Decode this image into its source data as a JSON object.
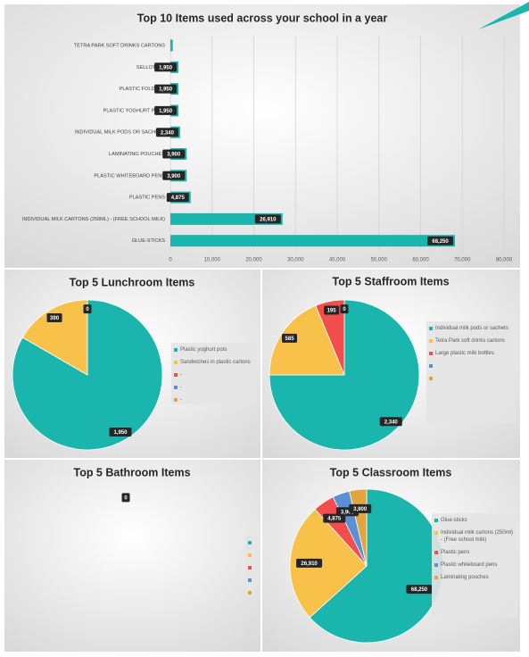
{
  "chart_data": [
    {
      "type": "bar",
      "title": "Top 10 Items used across your school in a year",
      "categories": [
        "TETRA PARK SOFT DRINKS CARTONS",
        "SELLOTAPE",
        "PLASTIC FOLDERS",
        "PLASTIC YOGHURT POTS",
        "INDIVIDUAL MILK PODS OR SACHETS",
        "LAMINATING POUCHES",
        "PLASTIC WHITEBOARD PENS",
        "PLASTIC PENS",
        "INDIVIDUAL MILK CARTONS (250ML) - (FREE SCHOOL MILK)",
        "GLUE-STICKS"
      ],
      "values": [
        585,
        1950,
        1950,
        1950,
        2340,
        3900,
        3900,
        4875,
        26910,
        68250
      ],
      "value_labels": [
        null,
        "1,950",
        "1,950",
        "1,950",
        "2,340",
        "3,900",
        "3,900",
        "4,875",
        "26,910",
        "68,250"
      ],
      "color": "#1ab5ad",
      "xlim": [
        0,
        80000
      ],
      "xticks": [
        0,
        {
          "value": 10000,
          "label": "10,000"
        },
        {
          "value": 20000,
          "label": "20,000"
        },
        {
          "value": 30000,
          "label": "30,000"
        },
        {
          "value": 40000,
          "label": "40,000"
        },
        {
          "value": 50000,
          "label": "50,000"
        },
        {
          "value": 60000,
          "label": "60,000"
        },
        {
          "value": 70000,
          "label": "70,000"
        },
        {
          "value": 80000,
          "label": "80,000"
        }
      ],
      "grid": true
    },
    {
      "type": "pie",
      "title": "Top 5 Lunchroom Items",
      "categories": [
        "Plastic yoghurt pots",
        "Sandwiches in plastic cartons",
        "-",
        "-",
        "-"
      ],
      "values": [
        1950,
        390,
        0,
        0,
        0
      ],
      "value_labels": [
        "1,950",
        "390",
        "0",
        null,
        null
      ],
      "colors": [
        "#1ab5ad",
        "#f8c24a",
        "#f24e4e",
        "#5b8fd6",
        "#e0a53c"
      ]
    },
    {
      "type": "pie",
      "title": "Top 5 Staffroom Items",
      "categories": [
        "Individual milk pods or sachets",
        "Tetra Park soft drinks cartons",
        "Large plastic milk bottles",
        null,
        null
      ],
      "values": [
        2340,
        585,
        195,
        0,
        0
      ],
      "value_labels": [
        "2,340",
        "585",
        "195",
        "0",
        null
      ],
      "colors": [
        "#1ab5ad",
        "#f8c24a",
        "#f24e4e",
        "#5b8fd6",
        "#e0a53c"
      ]
    },
    {
      "type": "pie",
      "title": "Top 5 Bathroom Items",
      "categories": [
        null,
        null,
        null,
        null,
        null
      ],
      "values": [
        0,
        0,
        0,
        0,
        0
      ],
      "value_labels": [
        "0",
        null,
        null,
        null,
        null
      ],
      "colors": [
        "#1ab5ad",
        "#f8c24a",
        "#f24e4e",
        "#5b8fd6",
        "#e0a53c"
      ]
    },
    {
      "type": "pie",
      "title": "Top 5 Classroom Items",
      "categories": [
        "Glue-sticks",
        "Individual milk cartons (250ml) - (Free school milk)",
        "Plastic pens",
        "Plastic whiteboard pens",
        "Laminating pouches"
      ],
      "values": [
        68250,
        26910,
        4875,
        3900,
        3900
      ],
      "value_labels": [
        "68,250",
        "26,910",
        "4,875",
        "3,900",
        "3,900"
      ],
      "colors": [
        "#1ab5ad",
        "#f8c24a",
        "#f24e4e",
        "#5b8fd6",
        "#e0a53c"
      ]
    }
  ]
}
